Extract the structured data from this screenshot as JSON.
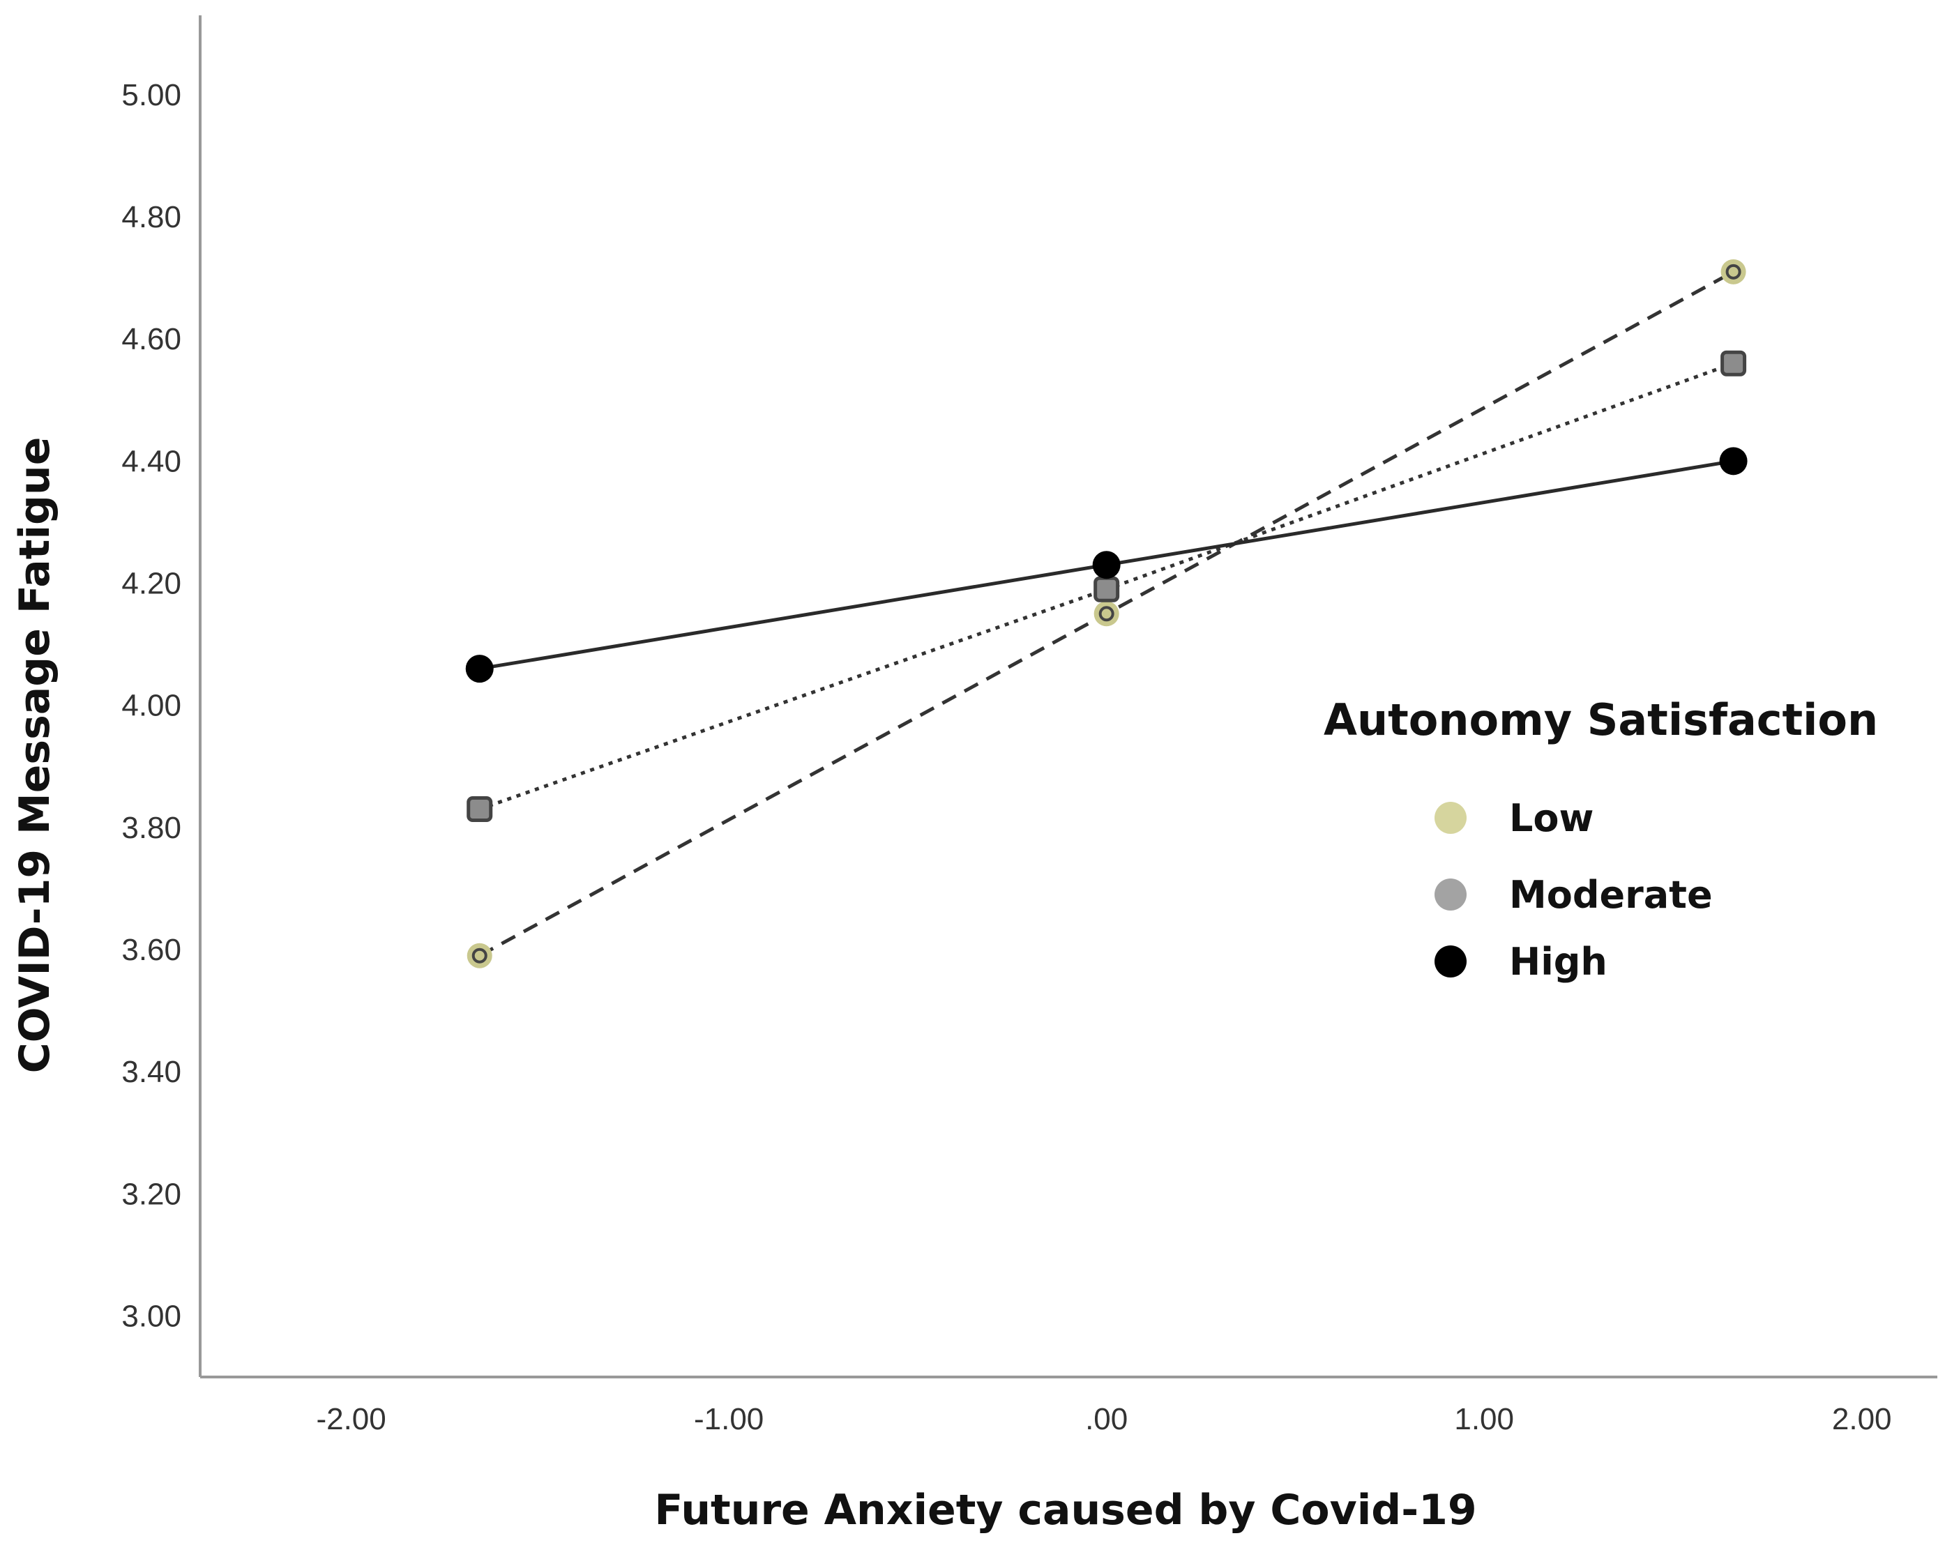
{
  "chart_data": {
    "type": "line",
    "title": "",
    "xlabel": "Future Anxiety caused by Covid-19",
    "ylabel": "COVID-19 Message Fatigue",
    "xlim": [
      -2.4,
      2.2
    ],
    "ylim": [
      2.9,
      5.13
    ],
    "x_ticks": [
      -2.0,
      -1.0,
      0.0,
      1.0,
      2.0
    ],
    "x_tick_labels": [
      "-2.00",
      "-1.00",
      ".00",
      "1.00",
      "2.00"
    ],
    "y_ticks": [
      3.0,
      3.2,
      3.4,
      3.6,
      3.8,
      4.0,
      4.2,
      4.4,
      4.6,
      4.8,
      5.0
    ],
    "y_tick_labels": [
      "3.00",
      "3.20",
      "3.40",
      "3.60",
      "3.80",
      "4.00",
      "4.20",
      "4.40",
      "4.60",
      "4.80",
      "5.00"
    ],
    "grid": false,
    "x": [
      -1.66,
      0.0,
      1.66
    ],
    "series": [
      {
        "name": "Low",
        "values": [
          3.59,
          4.15,
          4.71
        ],
        "color": "#c9c88e",
        "marker": "circle",
        "line_style": "dashed"
      },
      {
        "name": "Moderate",
        "values": [
          3.83,
          4.19,
          4.56
        ],
        "color": "#8c8c8c",
        "marker": "square",
        "line_style": "dotted"
      },
      {
        "name": "High",
        "values": [
          4.06,
          4.23,
          4.4
        ],
        "color": "#000000",
        "marker": "circle",
        "line_style": "solid"
      }
    ],
    "legend": {
      "title": "Autonomy Satisfaction",
      "placement": "right",
      "entries": [
        {
          "label": "Low",
          "color": "#d6d59e"
        },
        {
          "label": "Moderate",
          "color": "#a3a3a3"
        },
        {
          "label": "High",
          "color": "#000000"
        }
      ]
    }
  }
}
